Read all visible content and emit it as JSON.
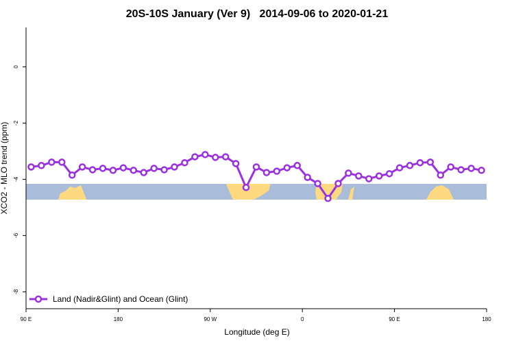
{
  "chart_data": {
    "type": "line",
    "title": "20S-10S January (Ver 9)   2014-09-06 to 2020-01-21",
    "x_label": "Longitude (deg E)",
    "y_label": "XCO2 - MLO trend (ppm)",
    "x": [
      95,
      105,
      115,
      125,
      135,
      145,
      155,
      165,
      175,
      185,
      195,
      205,
      215,
      225,
      235,
      245,
      255,
      265,
      275,
      285,
      295,
      305,
      315,
      325,
      335,
      345,
      355,
      365,
      375,
      385,
      395,
      405,
      415,
      425,
      435,
      445,
      455,
      465,
      475,
      485,
      495,
      505,
      515,
      525,
      535
    ],
    "series": [
      {
        "name": "Land (Nadir&Glint) and Ocean (Glint)",
        "color": "#9b30e0",
        "values": [
          -3.56,
          -3.51,
          -3.39,
          -3.39,
          -3.85,
          -3.56,
          -3.66,
          -3.61,
          -3.68,
          -3.59,
          -3.68,
          -3.76,
          -3.61,
          -3.66,
          -3.56,
          -3.41,
          -3.2,
          -3.12,
          -3.22,
          -3.2,
          -3.44,
          -4.29,
          -3.56,
          -3.76,
          -3.71,
          -3.59,
          -3.51,
          -3.93,
          -4.15,
          -4.68,
          -4.15,
          -3.78,
          -3.88,
          -3.98,
          -3.88,
          -3.8,
          -3.59,
          -3.51,
          -3.41,
          -3.39,
          -3.85,
          -3.56,
          -3.66,
          -3.61,
          -3.68
        ]
      }
    ],
    "xlim": [
      90,
      540
    ],
    "ylim": [
      -8.6,
      1.4
    ],
    "xticks": [
      {
        "value": 90,
        "label": "90 E"
      },
      180,
      {
        "value": 270,
        "label": "90 W"
      },
      {
        "value": 360,
        "label": "0"
      },
      {
        "value": 450,
        "label": "90 E"
      },
      {
        "value": 540,
        "label": "180"
      }
    ],
    "yticks": [
      0,
      -2,
      -4,
      -6,
      -8
    ],
    "legend_position": "bottom-left",
    "grid": false
  }
}
